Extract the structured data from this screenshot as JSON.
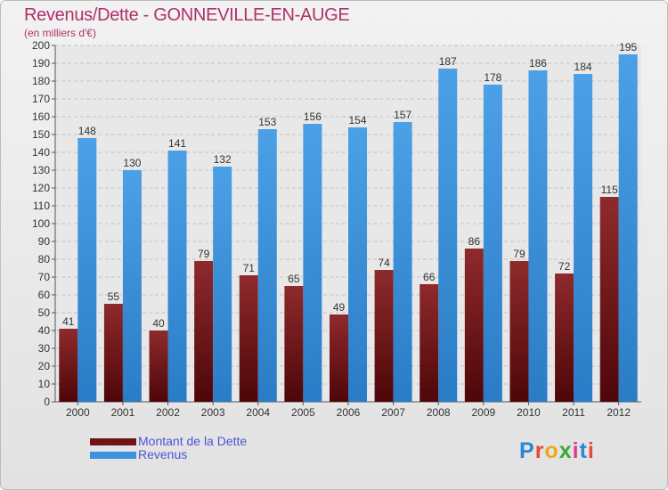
{
  "title": "Revenus/Dette - GONNEVILLE-EN-AUGE",
  "subtitle": "(en milliers d'€)",
  "logo": {
    "text": "Proxiti",
    "letter_colors": [
      "#2a86d8",
      "#e8463a",
      "#f2a71b",
      "#3aa935",
      "#d93a8e",
      "#2a86d8",
      "#e8463a"
    ]
  },
  "legend": [
    {
      "label": "Montant de la Dette",
      "color": "#6e1416"
    },
    {
      "label": "Revenus",
      "color": "#3e93de"
    }
  ],
  "chart_data": {
    "type": "bar",
    "title": "Revenus/Dette - GONNEVILLE-EN-AUGE",
    "subtitle": "(en milliers d'€)",
    "categories": [
      "2000",
      "2001",
      "2002",
      "2003",
      "2004",
      "2005",
      "2006",
      "2007",
      "2008",
      "2009",
      "2010",
      "2011",
      "2012"
    ],
    "series": [
      {
        "name": "Montant de la Dette",
        "color": "#6e1416",
        "values": [
          41,
          55,
          40,
          79,
          71,
          65,
          49,
          74,
          66,
          86,
          79,
          72,
          115
        ]
      },
      {
        "name": "Revenus",
        "color": "#3e93de",
        "values": [
          148,
          130,
          141,
          132,
          153,
          156,
          154,
          157,
          187,
          178,
          186,
          184,
          195
        ]
      }
    ],
    "ylim": [
      0,
      200
    ],
    "ytick_step": 10,
    "grid": true,
    "legend_position": "bottom-left"
  }
}
